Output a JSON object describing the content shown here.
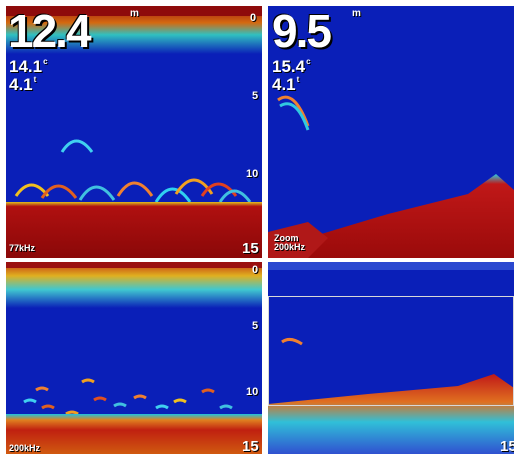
{
  "colors": {
    "water": "#0a1fb8",
    "bottom": "#b01010",
    "text": "#ffffff",
    "divider": "#ffffff"
  },
  "left": {
    "depth": "12.4",
    "depth_unit": "m",
    "temperature": "14.1",
    "temperature_unit": "c",
    "speed": "4.1",
    "speed_unit": "t",
    "scale_0": "0",
    "scale_5": "5",
    "scale_10": "10",
    "scale_15": "15",
    "frequency": "77kHz"
  },
  "right": {
    "depth": "9.5",
    "depth_unit": "m",
    "temperature": "15.4",
    "temperature_unit": "c",
    "speed": "4.1",
    "speed_unit": "t",
    "zoom_label": "Zoom",
    "zoom_frequency": "200kHz",
    "bottom_scale": "15"
  },
  "lower_left": {
    "scale_0": "0",
    "scale_5": "5",
    "scale_10": "10",
    "scale_15": "15",
    "frequency": "200kHz"
  }
}
